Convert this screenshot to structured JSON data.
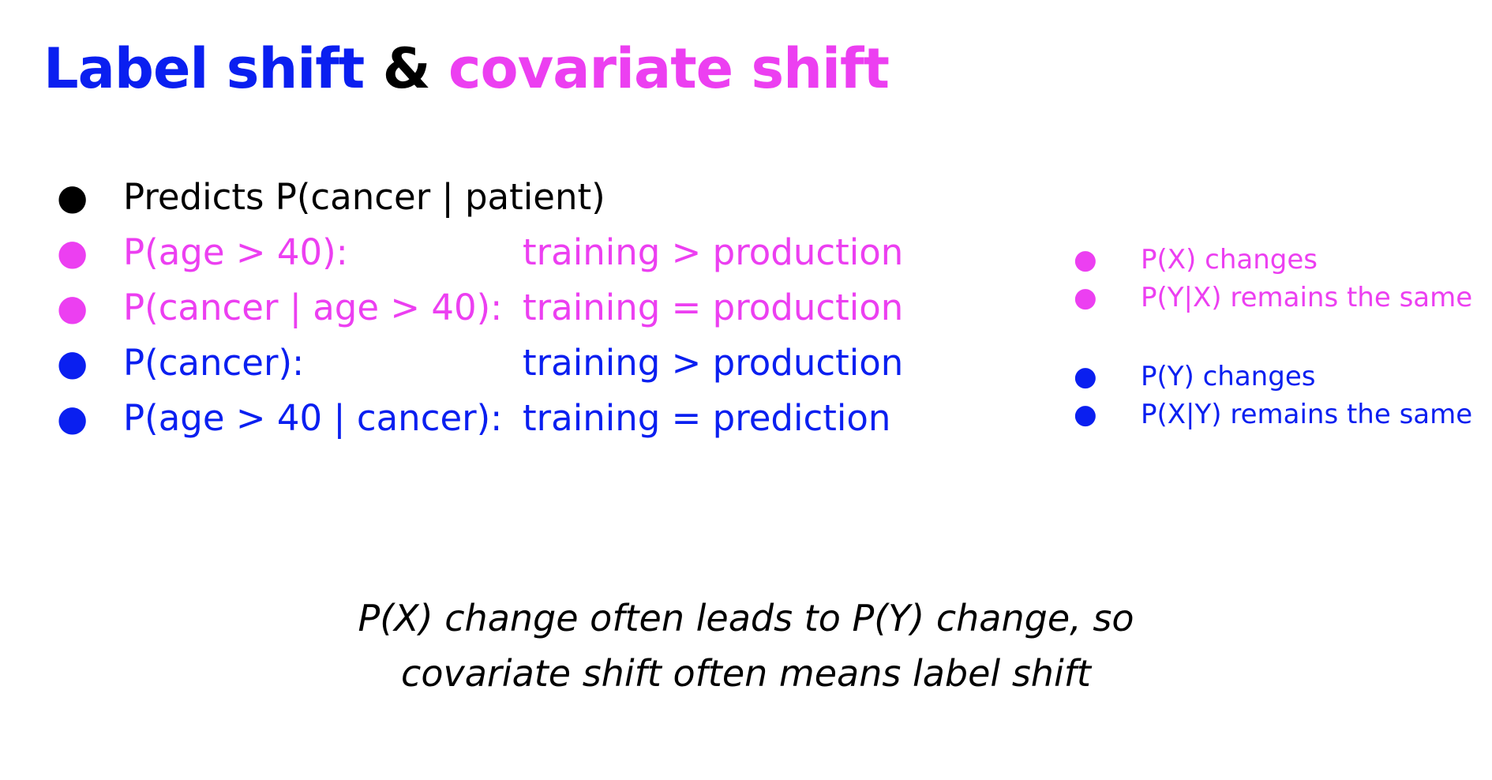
{
  "title": {
    "part1": "Label shift",
    "part2": " & ",
    "part3": "covariate shift",
    "colors": {
      "part1": "#0a1ff0",
      "part2": "#000000",
      "part3": "#ec3ff1"
    }
  },
  "main_list": [
    {
      "expr": "Predicts P(cancer | patient)",
      "relation": "",
      "color": "#000000"
    },
    {
      "expr": "P(age > 40):",
      "relation": "training > production",
      "color": "#ec3ff1"
    },
    {
      "expr": "P(cancer | age > 40):",
      "relation": "training = production",
      "color": "#ec3ff1"
    },
    {
      "expr": "P(cancer):",
      "relation": "training > production",
      "color": "#0a1ff0"
    },
    {
      "expr": "P(age > 40 | cancer):",
      "relation": "training = prediction",
      "color": "#0a1ff0"
    }
  ],
  "covariate_notes": [
    "P(X) changes",
    "P(Y|X) remains the same"
  ],
  "label_notes": [
    "P(Y) changes",
    "P(X|Y) remains the same"
  ],
  "footnote": {
    "line1": "P(X) change often leads to P(Y) change, so",
    "line2": "covariate shift often means label shift"
  },
  "bullet_glyph": "●"
}
